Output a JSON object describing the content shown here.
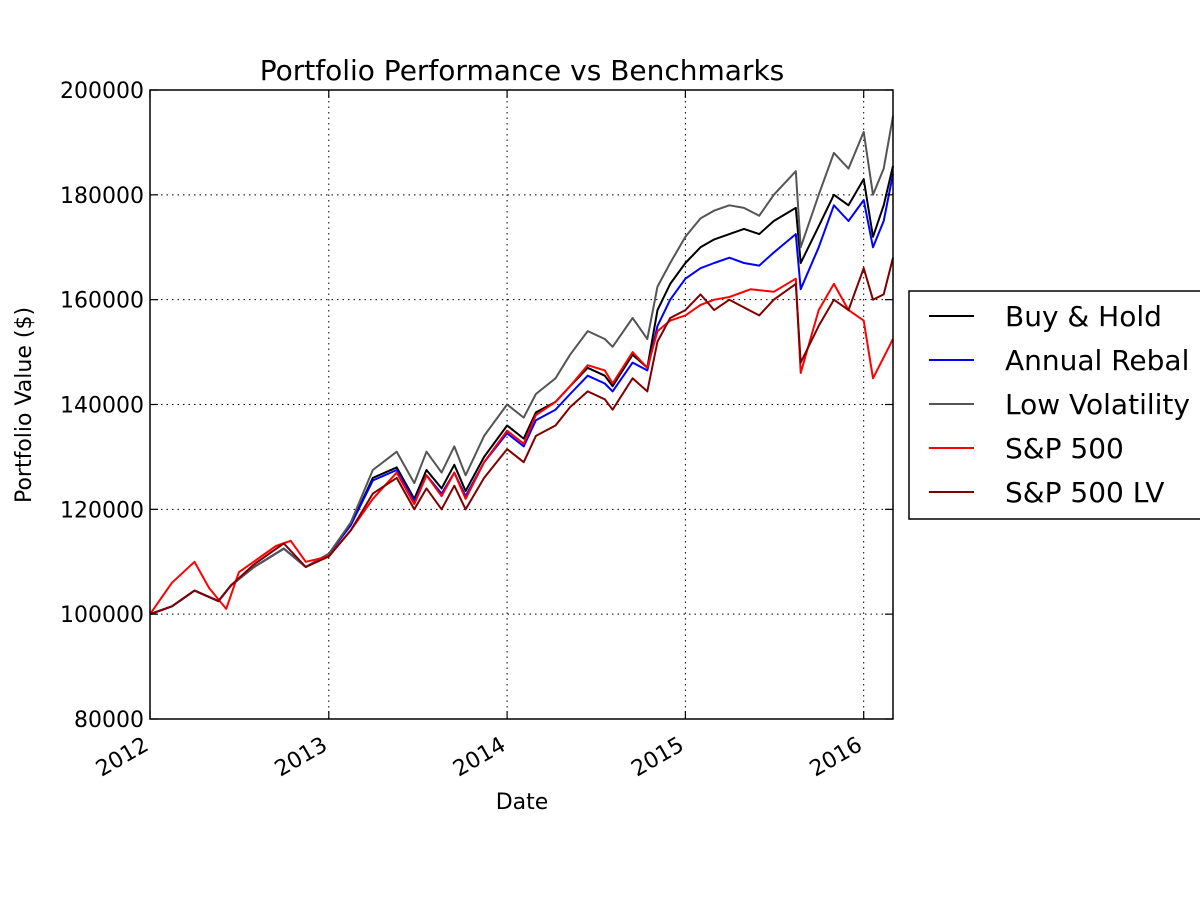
{
  "chart_data": {
    "type": "line",
    "title": "Portfolio Performance vs Benchmarks",
    "xlabel": "Date",
    "ylabel": "Portfolio Value ($)",
    "xlim": [
      "2012-01-01",
      "2016-03-01"
    ],
    "ylim": [
      80000,
      200000
    ],
    "x_ticks": [
      "2012",
      "2013",
      "2014",
      "2015",
      "2016"
    ],
    "y_ticks": [
      "80000",
      "100000",
      "120000",
      "140000",
      "160000",
      "180000",
      "200000"
    ],
    "grid": true,
    "legend_position": "right, outside plot",
    "series": [
      {
        "name": "Buy & Hold",
        "color": "#000000",
        "x": [
          "2012-01-01",
          "2012-02-15",
          "2012-04-01",
          "2012-05-20",
          "2012-06-15",
          "2012-08-01",
          "2012-10-01",
          "2012-11-15",
          "2013-01-01",
          "2013-02-15",
          "2013-04-01",
          "2013-05-20",
          "2013-06-25",
          "2013-07-20",
          "2013-08-20",
          "2013-09-15",
          "2013-10-08",
          "2013-11-15",
          "2014-01-01",
          "2014-02-04",
          "2014-03-01",
          "2014-04-10",
          "2014-05-10",
          "2014-06-15",
          "2014-07-20",
          "2014-08-05",
          "2014-09-15",
          "2014-10-15",
          "2014-11-05",
          "2014-12-01",
          "2015-01-01",
          "2015-02-01",
          "2015-03-01",
          "2015-04-01",
          "2015-05-01",
          "2015-06-01",
          "2015-07-01",
          "2015-08-15",
          "2015-08-25",
          "2015-10-01",
          "2015-11-01",
          "2015-12-01",
          "2016-01-01",
          "2016-01-20",
          "2016-02-11",
          "2016-03-01"
        ],
        "values": [
          100000,
          101500,
          104500,
          102500,
          105500,
          109000,
          112500,
          109000,
          111500,
          117000,
          126000,
          128000,
          122000,
          127500,
          124000,
          128500,
          123500,
          130000,
          136000,
          133500,
          138500,
          140500,
          143500,
          147000,
          145500,
          143500,
          149500,
          147000,
          158000,
          163000,
          167000,
          170000,
          171500,
          172500,
          173500,
          172500,
          175000,
          177500,
          167000,
          174000,
          180000,
          178000,
          183000,
          172000,
          178000,
          185500
        ]
      },
      {
        "name": "Annual Rebal",
        "color": "#0000ff",
        "x": [
          "2012-01-01",
          "2012-02-15",
          "2012-04-01",
          "2012-05-20",
          "2012-06-15",
          "2012-08-01",
          "2012-10-01",
          "2012-11-15",
          "2013-01-01",
          "2013-02-15",
          "2013-04-01",
          "2013-05-20",
          "2013-06-25",
          "2013-07-20",
          "2013-08-20",
          "2013-09-15",
          "2013-10-08",
          "2013-11-15",
          "2014-01-01",
          "2014-02-04",
          "2014-03-01",
          "2014-04-10",
          "2014-05-10",
          "2014-06-15",
          "2014-07-20",
          "2014-08-05",
          "2014-09-15",
          "2014-10-15",
          "2014-11-05",
          "2014-12-01",
          "2015-01-01",
          "2015-02-01",
          "2015-03-01",
          "2015-04-01",
          "2015-05-01",
          "2015-06-01",
          "2015-07-01",
          "2015-08-15",
          "2015-08-25",
          "2015-10-01",
          "2015-11-01",
          "2015-12-01",
          "2016-01-01",
          "2016-01-20",
          "2016-02-11",
          "2016-03-01"
        ],
        "values": [
          100000,
          101500,
          104500,
          102500,
          105500,
          109000,
          112500,
          109000,
          111500,
          117000,
          125500,
          127500,
          121500,
          126500,
          123000,
          127000,
          122500,
          129000,
          134500,
          132000,
          137000,
          139000,
          142000,
          145500,
          144000,
          142500,
          148000,
          146500,
          155000,
          160000,
          164000,
          166000,
          167000,
          168000,
          167000,
          166500,
          169000,
          172500,
          162000,
          170000,
          178000,
          175000,
          179000,
          170000,
          175000,
          184000
        ]
      },
      {
        "name": "Low Volatility",
        "color": "#555555",
        "x": [
          "2012-01-01",
          "2012-02-15",
          "2012-04-01",
          "2012-05-20",
          "2012-06-15",
          "2012-08-01",
          "2012-10-01",
          "2012-11-15",
          "2013-01-01",
          "2013-02-15",
          "2013-04-01",
          "2013-05-20",
          "2013-06-25",
          "2013-07-20",
          "2013-08-20",
          "2013-09-15",
          "2013-10-08",
          "2013-11-15",
          "2014-01-01",
          "2014-02-04",
          "2014-03-01",
          "2014-04-10",
          "2014-05-10",
          "2014-06-15",
          "2014-07-20",
          "2014-08-05",
          "2014-09-15",
          "2014-10-15",
          "2014-11-05",
          "2014-12-01",
          "2015-01-01",
          "2015-02-01",
          "2015-03-01",
          "2015-04-01",
          "2015-05-01",
          "2015-06-01",
          "2015-07-01",
          "2015-08-15",
          "2015-08-25",
          "2015-10-01",
          "2015-11-01",
          "2015-12-01",
          "2016-01-01",
          "2016-01-20",
          "2016-02-11",
          "2016-03-01"
        ],
        "values": [
          100000,
          101500,
          104500,
          102500,
          105500,
          109000,
          112500,
          109000,
          111500,
          117500,
          127500,
          131000,
          125000,
          131000,
          127000,
          132000,
          126500,
          134000,
          140000,
          137500,
          142000,
          145000,
          149500,
          154000,
          152500,
          151000,
          156500,
          152500,
          162500,
          167000,
          172000,
          175500,
          177000,
          178000,
          177500,
          176000,
          180000,
          184500,
          170000,
          180000,
          188000,
          185000,
          192000,
          180000,
          185000,
          195000
        ]
      },
      {
        "name": "S&P 500",
        "color": "#ff0000",
        "x": [
          "2012-01-01",
          "2012-02-15",
          "2012-04-01",
          "2012-05-01",
          "2012-06-05",
          "2012-07-01",
          "2012-09-15",
          "2012-10-15",
          "2012-11-15",
          "2013-01-01",
          "2013-02-15",
          "2013-04-01",
          "2013-05-20",
          "2013-06-25",
          "2013-07-20",
          "2013-08-20",
          "2013-09-15",
          "2013-10-08",
          "2013-11-15",
          "2014-01-01",
          "2014-02-04",
          "2014-03-01",
          "2014-04-10",
          "2014-05-10",
          "2014-06-15",
          "2014-07-20",
          "2014-08-05",
          "2014-09-15",
          "2014-10-15",
          "2014-11-05",
          "2014-12-01",
          "2015-01-01",
          "2015-02-01",
          "2015-03-01",
          "2015-04-01",
          "2015-05-15",
          "2015-07-01",
          "2015-08-15",
          "2015-08-25",
          "2015-10-01",
          "2015-11-01",
          "2015-12-01",
          "2016-01-01",
          "2016-01-20",
          "2016-02-11",
          "2016-03-01"
        ],
        "values": [
          100000,
          106000,
          110000,
          105000,
          101000,
          108000,
          113000,
          114000,
          110000,
          111000,
          116000,
          122000,
          127000,
          121000,
          126500,
          122500,
          127000,
          122000,
          129000,
          135000,
          132500,
          138000,
          140500,
          143500,
          147500,
          146500,
          144000,
          150000,
          147000,
          154000,
          156000,
          157000,
          159000,
          160000,
          160500,
          162000,
          161500,
          164000,
          146000,
          158000,
          163000,
          158000,
          156000,
          145000,
          149000,
          152500
        ]
      },
      {
        "name": "S&P 500 LV",
        "color": "#800000",
        "x": [
          "2012-01-01",
          "2012-02-15",
          "2012-04-01",
          "2012-05-20",
          "2012-06-15",
          "2012-08-01",
          "2012-10-01",
          "2012-11-15",
          "2013-01-01",
          "2013-02-15",
          "2013-04-01",
          "2013-05-20",
          "2013-06-25",
          "2013-07-20",
          "2013-08-20",
          "2013-09-15",
          "2013-10-08",
          "2013-11-15",
          "2014-01-01",
          "2014-02-04",
          "2014-03-01",
          "2014-04-10",
          "2014-05-10",
          "2014-06-15",
          "2014-07-20",
          "2014-08-05",
          "2014-09-15",
          "2014-10-15",
          "2014-11-05",
          "2014-12-01",
          "2015-01-01",
          "2015-02-01",
          "2015-03-01",
          "2015-04-01",
          "2015-05-01",
          "2015-06-01",
          "2015-07-01",
          "2015-08-15",
          "2015-08-25",
          "2015-10-01",
          "2015-11-01",
          "2015-12-01",
          "2016-01-01",
          "2016-01-20",
          "2016-02-11",
          "2016-03-01"
        ],
        "values": [
          100000,
          101500,
          104500,
          102500,
          105500,
          109500,
          113500,
          109000,
          111000,
          116000,
          123000,
          126000,
          120000,
          124000,
          120000,
          124500,
          120000,
          126000,
          131500,
          129000,
          134000,
          136000,
          139500,
          142500,
          141000,
          139000,
          145000,
          142500,
          152000,
          156500,
          158000,
          161000,
          158000,
          160000,
          158500,
          157000,
          160000,
          163000,
          148000,
          155000,
          160000,
          158000,
          166000,
          160000,
          161000,
          168000
        ]
      }
    ]
  }
}
